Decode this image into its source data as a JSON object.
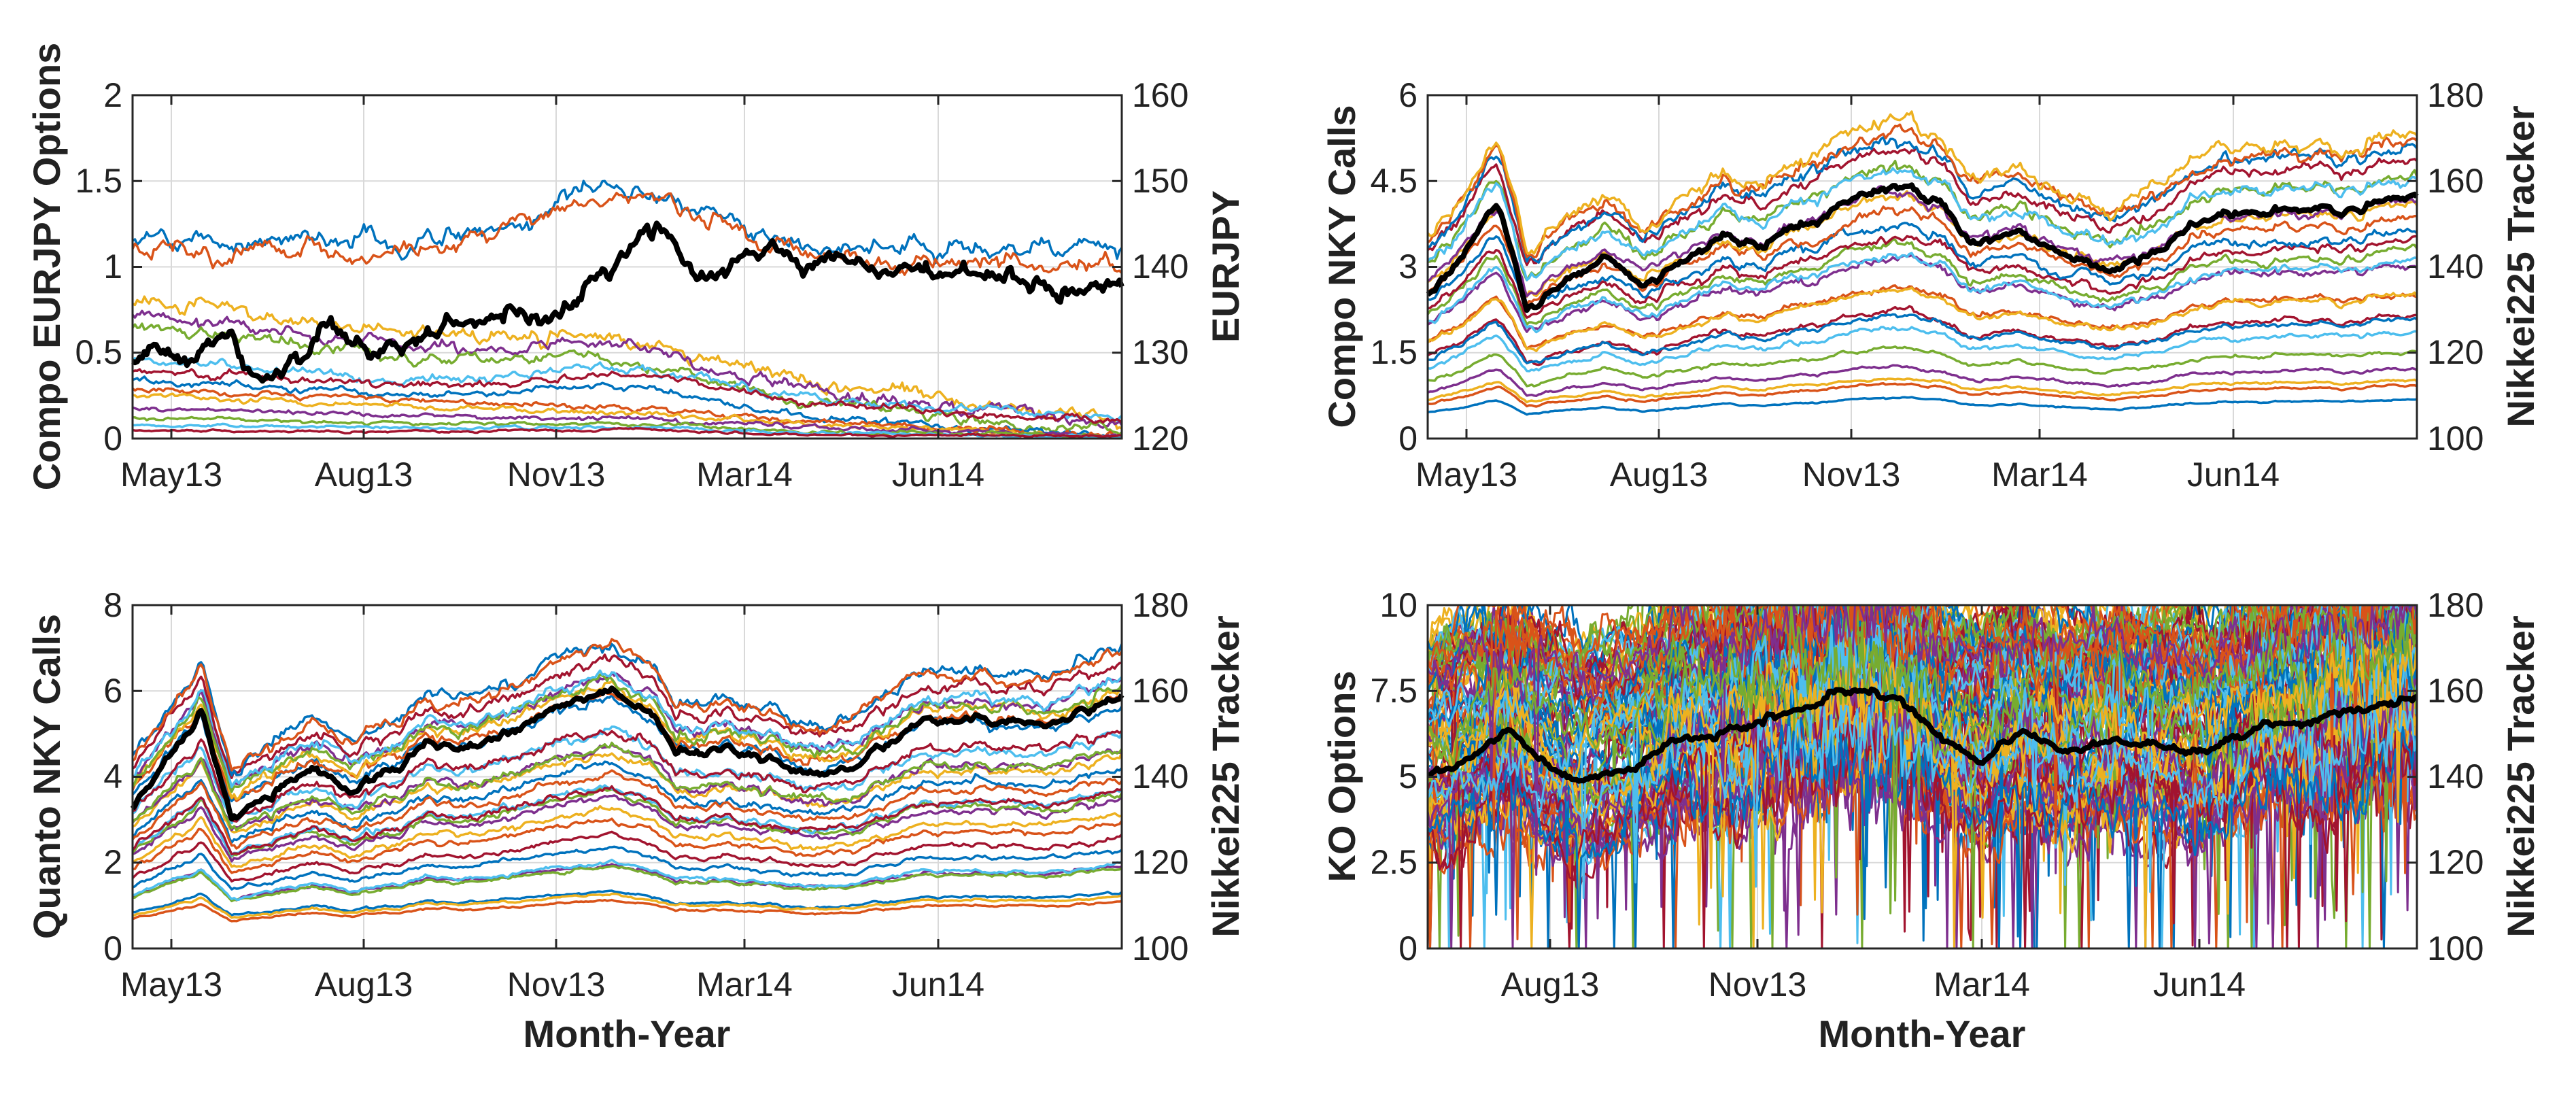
{
  "colors": {
    "series": [
      "#0072BD",
      "#D95319",
      "#EDB120",
      "#7E2F8E",
      "#77AC30",
      "#4DBEEE",
      "#A2142F"
    ],
    "tracker": "#000000",
    "grid": "#d9d9d9"
  },
  "chart_data": [
    {
      "id": "compo-eurjpy",
      "type": "line",
      "ylabel": "Compo EURJPY Options",
      "y2label": "EURJPY",
      "xlabel": "",
      "xticks": [
        "May13",
        "Aug13",
        "Nov13",
        "Mar14",
        "Jun14"
      ],
      "yticks": [
        "0",
        "0.5",
        "1",
        "1.5",
        "2"
      ],
      "y2ticks": [
        "120",
        "130",
        "140",
        "150",
        "160"
      ],
      "ylim": [
        0,
        2
      ],
      "y2lim": [
        120,
        160
      ],
      "grid": true,
      "series_count": 14,
      "option_start": [
        1.15,
        1.1,
        0.82,
        0.72,
        0.65,
        0.45,
        0.4,
        0.35,
        0.3,
        0.25,
        0.18,
        0.12,
        0.08,
        0.05
      ],
      "option_end": [
        1.1,
        1.0,
        0.1,
        0.08,
        0.02,
        0.12,
        0.1,
        0.01,
        0.01,
        0.01,
        0.01,
        0.01,
        0.01,
        0.01
      ],
      "tracker_nodes": [
        [
          0,
          129
        ],
        [
          0.05,
          130
        ],
        [
          0.1,
          132
        ],
        [
          0.13,
          127
        ],
        [
          0.2,
          131
        ],
        [
          0.25,
          130
        ],
        [
          0.33,
          134
        ],
        [
          0.38,
          135
        ],
        [
          0.42,
          134
        ],
        [
          0.45,
          136
        ],
        [
          0.5,
          142
        ],
        [
          0.52,
          145
        ],
        [
          0.55,
          142
        ],
        [
          0.58,
          138
        ],
        [
          0.62,
          142
        ],
        [
          0.7,
          141
        ],
        [
          0.78,
          140
        ],
        [
          0.84,
          139
        ],
        [
          0.9,
          138
        ],
        [
          0.95,
          137
        ],
        [
          1.0,
          138
        ]
      ]
    },
    {
      "id": "compo-nky",
      "type": "line",
      "ylabel": "Compo NKY Calls",
      "y2label": "Nikkei225 Tracker",
      "xlabel": "",
      "xticks": [
        "May13",
        "Aug13",
        "Nov13",
        "Mar14",
        "Jun14"
      ],
      "yticks": [
        "0",
        "1.5",
        "3",
        "4.5",
        "6"
      ],
      "y2ticks": [
        "100",
        "120",
        "140",
        "160",
        "180"
      ],
      "ylim": [
        0,
        6
      ],
      "y2lim": [
        100,
        180
      ],
      "grid": true,
      "series_count": 24,
      "tracker_nodes": [
        [
          0,
          133
        ],
        [
          0.04,
          145
        ],
        [
          0.07,
          155
        ],
        [
          0.1,
          130
        ],
        [
          0.13,
          135
        ],
        [
          0.18,
          142
        ],
        [
          0.22,
          137
        ],
        [
          0.26,
          141
        ],
        [
          0.3,
          148
        ],
        [
          0.34,
          145
        ],
        [
          0.38,
          150
        ],
        [
          0.42,
          155
        ],
        [
          0.48,
          160
        ],
        [
          0.52,
          156
        ],
        [
          0.55,
          145
        ],
        [
          0.6,
          149
        ],
        [
          0.64,
          143
        ],
        [
          0.7,
          140
        ],
        [
          0.75,
          146
        ],
        [
          0.8,
          152
        ],
        [
          0.86,
          154
        ],
        [
          0.92,
          153
        ],
        [
          1.0,
          158
        ]
      ]
    },
    {
      "id": "quanto-nky",
      "type": "line",
      "ylabel": "Quanto NKY Calls",
      "y2label": "Nikkei225 Tracker",
      "xlabel": "Month-Year",
      "xticks": [
        "May13",
        "Aug13",
        "Nov13",
        "Mar14",
        "Jun14"
      ],
      "yticks": [
        "0",
        "2",
        "4",
        "6",
        "8"
      ],
      "y2ticks": [
        "100",
        "120",
        "140",
        "160",
        "180"
      ],
      "ylim": [
        0,
        8
      ],
      "y2lim": [
        100,
        180
      ],
      "grid": true,
      "series_count": 30,
      "tracker_nodes": [
        [
          0,
          133
        ],
        [
          0.04,
          145
        ],
        [
          0.07,
          155
        ],
        [
          0.1,
          130
        ],
        [
          0.13,
          135
        ],
        [
          0.18,
          142
        ],
        [
          0.22,
          137
        ],
        [
          0.26,
          141
        ],
        [
          0.3,
          148
        ],
        [
          0.34,
          145
        ],
        [
          0.38,
          150
        ],
        [
          0.42,
          155
        ],
        [
          0.48,
          160
        ],
        [
          0.52,
          156
        ],
        [
          0.55,
          145
        ],
        [
          0.6,
          149
        ],
        [
          0.64,
          143
        ],
        [
          0.7,
          140
        ],
        [
          0.75,
          146
        ],
        [
          0.8,
          152
        ],
        [
          0.86,
          154
        ],
        [
          0.92,
          153
        ],
        [
          1.0,
          158
        ]
      ]
    },
    {
      "id": "ko-options",
      "type": "line",
      "ylabel": "KO Options",
      "y2label": "Nikkei225 Tracker",
      "xlabel": "Month-Year",
      "xticks": [
        "Aug13",
        "Nov13",
        "Mar14",
        "Jun14"
      ],
      "yticks": [
        "0",
        "2.5",
        "5",
        "7.5",
        "10"
      ],
      "y2ticks": [
        "100",
        "120",
        "140",
        "160",
        "180"
      ],
      "ylim": [
        0,
        10
      ],
      "y2lim": [
        100,
        180
      ],
      "grid": true,
      "series_count": 90,
      "tracker_nodes": [
        [
          0,
          140
        ],
        [
          0.04,
          145
        ],
        [
          0.08,
          150
        ],
        [
          0.12,
          142
        ],
        [
          0.16,
          138
        ],
        [
          0.2,
          142
        ],
        [
          0.25,
          148
        ],
        [
          0.3,
          152
        ],
        [
          0.36,
          155
        ],
        [
          0.42,
          160
        ],
        [
          0.48,
          158
        ],
        [
          0.52,
          148
        ],
        [
          0.56,
          145
        ],
        [
          0.6,
          150
        ],
        [
          0.66,
          146
        ],
        [
          0.72,
          148
        ],
        [
          0.78,
          146
        ],
        [
          0.82,
          150
        ],
        [
          0.88,
          152
        ],
        [
          0.93,
          155
        ],
        [
          1.0,
          158
        ]
      ]
    }
  ]
}
